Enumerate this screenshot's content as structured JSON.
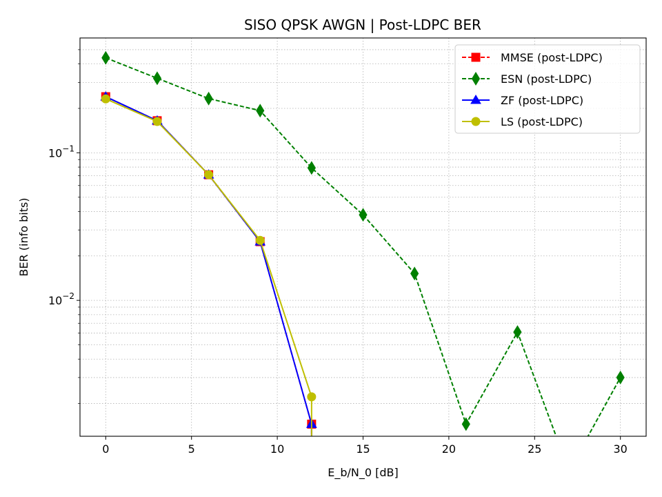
{
  "chart_data": {
    "type": "line",
    "title": "SISO QPSK AWGN | Post-LDPC BER",
    "xlabel": "E_b/N_0 [dB]",
    "ylabel": "BER (info bits)",
    "xscale": "linear",
    "yscale": "log",
    "xlim": [
      -1.5,
      31.5
    ],
    "ylim": [
      0.0012,
      0.6
    ],
    "xticks": [
      0,
      5,
      10,
      15,
      20,
      25,
      30
    ],
    "xtick_labels": [
      "0",
      "5",
      "10",
      "15",
      "20",
      "25",
      "30"
    ],
    "yticks": [
      0.1,
      0.01
    ],
    "ytick_base": "10",
    "ytick_exponents": [
      "−1",
      "−2"
    ],
    "grid": true,
    "legend_position": "upper right",
    "series": [
      {
        "name": "MMSE (post-LDPC)",
        "color": "#ff0000",
        "linestyle": "dashed",
        "marker": "square",
        "x": [
          0,
          3,
          6,
          9,
          12
        ],
        "y": [
          0.24,
          0.165,
          0.071,
          0.025,
          0.00145
        ]
      },
      {
        "name": "ESN (post-LDPC)",
        "color": "#008000",
        "linestyle": "dashed",
        "marker": "thin_diamond",
        "x": [
          0,
          3,
          6,
          9,
          12,
          15,
          18,
          21,
          24,
          27,
          30
        ],
        "y": [
          0.44,
          0.32,
          0.233,
          0.193,
          0.079,
          0.038,
          0.0152,
          0.00145,
          0.0061,
          0,
          0.003
        ]
      },
      {
        "name": "ZF (post-LDPC)",
        "color": "#0000ff",
        "linestyle": "solid",
        "marker": "triangle",
        "x": [
          0,
          3,
          6,
          9,
          12
        ],
        "y": [
          0.24,
          0.165,
          0.071,
          0.025,
          0.00145
        ]
      },
      {
        "name": "LS (post-LDPC)",
        "color": "#bfbf00",
        "linestyle": "solid",
        "marker": "circle",
        "x": [
          0,
          3,
          6,
          9,
          12
        ],
        "y": [
          0.232,
          0.163,
          0.071,
          0.0255,
          0.00222
        ]
      }
    ],
    "extra_points": [
      {
        "series": "MMSE (post-LDPC)",
        "x": 15,
        "y": 0
      },
      {
        "series": "ZF (post-LDPC)",
        "x": 15,
        "y": 0
      },
      {
        "series": "LS (post-LDPC)",
        "x": 15,
        "y": 0
      }
    ]
  }
}
